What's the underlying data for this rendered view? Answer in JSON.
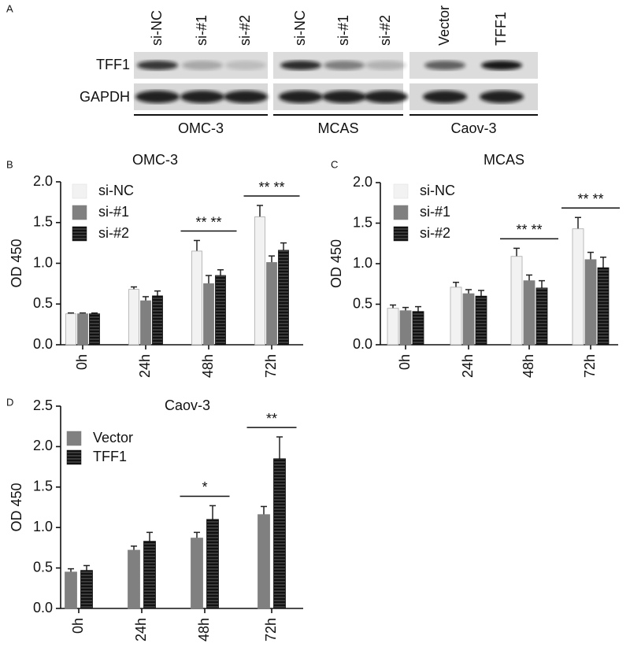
{
  "blot": {
    "panel": "A",
    "lanes": [
      "si-NC",
      "si-#1",
      "si-#2",
      "si-NC",
      "si-#1",
      "si-#2",
      "Vector",
      "TFF1"
    ],
    "rows": [
      "TFF1",
      "GAPDH"
    ],
    "groups": [
      "OMC-3",
      "MCAS",
      "Caov-3"
    ]
  },
  "chart_data": [
    {
      "type": "bar",
      "panel": "B",
      "title": "OMC-3",
      "y_label": "OD 450",
      "categories": [
        "0h",
        "24h",
        "48h",
        "72h"
      ],
      "series": [
        {
          "name": "si-NC",
          "color": "#f2f2f2",
          "values": [
            0.38,
            0.68,
            1.15,
            1.57
          ],
          "errors": [
            0.01,
            0.03,
            0.13,
            0.14
          ]
        },
        {
          "name": "si-#1",
          "color": "#808080",
          "values": [
            0.38,
            0.54,
            0.75,
            1.01
          ],
          "errors": [
            0.01,
            0.05,
            0.1,
            0.08
          ]
        },
        {
          "name": "si-#2",
          "color": "#111111",
          "pattern": "stripes",
          "values": [
            0.38,
            0.6,
            0.85,
            1.16
          ],
          "errors": [
            0.01,
            0.06,
            0.07,
            0.09
          ]
        }
      ],
      "annotations": [
        null,
        null,
        "** **",
        "** **"
      ],
      "ylim": [
        0,
        2
      ],
      "yticks": [
        {
          "value": 0,
          "label": "0.0"
        },
        0.5,
        {
          "value": 1,
          "label": "1.0"
        },
        1.5,
        {
          "value": 2,
          "label": "2.0"
        }
      ],
      "grid": false
    },
    {
      "type": "bar",
      "panel": "C",
      "title": "MCAS",
      "y_label": "OD 450",
      "categories": [
        "0h",
        "24h",
        "48h",
        "72h"
      ],
      "series": [
        {
          "name": "si-NC",
          "color": "#f2f2f2",
          "values": [
            0.45,
            0.71,
            1.09,
            1.43
          ],
          "errors": [
            0.04,
            0.06,
            0.1,
            0.14
          ]
        },
        {
          "name": "si-#1",
          "color": "#808080",
          "values": [
            0.42,
            0.63,
            0.79,
            1.05
          ],
          "errors": [
            0.04,
            0.05,
            0.07,
            0.09
          ]
        },
        {
          "name": "si-#2",
          "color": "#111111",
          "pattern": "stripes",
          "values": [
            0.41,
            0.6,
            0.7,
            0.95
          ],
          "errors": [
            0.06,
            0.07,
            0.09,
            0.13
          ]
        }
      ],
      "annotations": [
        null,
        null,
        "** **",
        "** **"
      ],
      "ylim": [
        0,
        2
      ],
      "yticks": [
        {
          "value": 0,
          "label": "0.0"
        },
        0.5,
        {
          "value": 1,
          "label": "1.0"
        },
        1.5,
        {
          "value": 2,
          "label": "2.0"
        }
      ],
      "grid": false
    },
    {
      "type": "bar",
      "panel": "D",
      "title": "Caov-3",
      "y_label": "OD 450",
      "categories": [
        "0h",
        "24h",
        "48h",
        "72h"
      ],
      "series": [
        {
          "name": "Vector",
          "color": "#808080",
          "values": [
            0.45,
            0.72,
            0.87,
            1.16
          ],
          "errors": [
            0.04,
            0.05,
            0.07,
            0.1
          ]
        },
        {
          "name": "TFF1",
          "color": "#111111",
          "pattern": "stripes",
          "values": [
            0.47,
            0.83,
            1.1,
            1.85
          ],
          "errors": [
            0.06,
            0.11,
            0.17,
            0.27
          ]
        }
      ],
      "annotations": [
        null,
        null,
        "*",
        "**"
      ],
      "ylim": [
        0,
        2.5
      ],
      "yticks": [
        {
          "value": 0,
          "label": "0.0"
        },
        0.5,
        {
          "value": 1,
          "label": "1.0"
        },
        1.5,
        {
          "value": 2,
          "label": "2.0"
        },
        2.5
      ],
      "grid": false
    }
  ]
}
